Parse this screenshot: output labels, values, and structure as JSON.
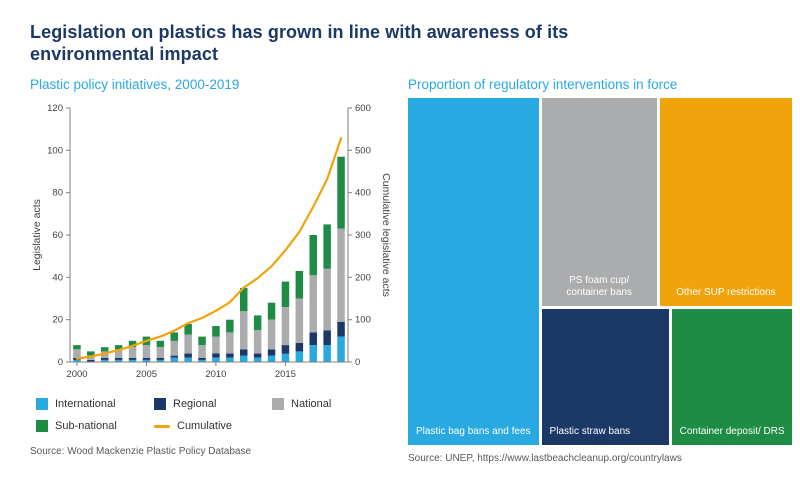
{
  "header": {
    "title_line1": "Legislation on plastics has grown in line with awareness of its",
    "title_line2": "environmental impact"
  },
  "colors": {
    "title_navy": "#1b3866",
    "accent_cyan": "#29a9e1",
    "international": "#29a9e1",
    "regional": "#1b3866",
    "national": "#aaacae",
    "sub_national": "#1e8c45",
    "cumulative": "#f0a30a",
    "axis_text": "#404040",
    "source_text": "#595959"
  },
  "left_chart": {
    "title": "Plastic policy initiatives, 2000-2019",
    "source": "Source: Wood Mackenzie Plastic Policy Database",
    "y_left_ticks": [
      0,
      20,
      40,
      60,
      80,
      100,
      120
    ],
    "y_right_ticks": [
      0,
      100,
      200,
      300,
      400,
      500,
      600
    ],
    "x_tick_labels": [
      "2000",
      "2005",
      "2010",
      "2015"
    ]
  },
  "legend": [
    {
      "label": "International",
      "color": "#29a9e1",
      "swatch": "square"
    },
    {
      "label": "Regional",
      "color": "#1b3866",
      "swatch": "square"
    },
    {
      "label": "National",
      "color": "#aaacae",
      "swatch": "square"
    },
    {
      "label": "Sub-national",
      "color": "#1e8c45",
      "swatch": "square"
    },
    {
      "label": "Cumulative",
      "color": "#f0a30a",
      "swatch": "line"
    }
  ],
  "treemap": {
    "title": "Proportion of regulatory interventions in force",
    "source": "Source: UNEP, https://www.lastbeachcleanup.org/countrylaws",
    "items": [
      {
        "label": "Plastic bag bans and fees",
        "color": "#29a9e1"
      },
      {
        "label": "PS foam cup/ container bans",
        "color": "#aaacae"
      },
      {
        "label": "Other SUP restrictions",
        "color": "#f0a30a"
      },
      {
        "label": "Plastic straw bans",
        "color": "#1b3866"
      },
      {
        "label": "Container deposit/ DRS",
        "color": "#1e8c45"
      }
    ]
  },
  "chart_data": [
    {
      "type": "bar",
      "subtype": "stacked-bar-with-cumulative-line",
      "title": "Plastic policy initiatives, 2000-2019",
      "x": [
        2000,
        2001,
        2002,
        2003,
        2004,
        2005,
        2006,
        2007,
        2008,
        2009,
        2010,
        2011,
        2012,
        2013,
        2014,
        2015,
        2016,
        2017,
        2018,
        2019
      ],
      "series": [
        {
          "name": "International",
          "color": "#29a9e1",
          "values": [
            1,
            0,
            1,
            1,
            1,
            1,
            1,
            2,
            2,
            1,
            2,
            2,
            3,
            2,
            3,
            4,
            5,
            8,
            8,
            12
          ]
        },
        {
          "name": "Regional",
          "color": "#1b3866",
          "values": [
            1,
            1,
            1,
            1,
            1,
            1,
            1,
            1,
            2,
            1,
            2,
            2,
            3,
            2,
            3,
            4,
            4,
            6,
            7,
            7
          ]
        },
        {
          "name": "National",
          "color": "#aaacae",
          "values": [
            4,
            2,
            3,
            4,
            5,
            6,
            5,
            7,
            9,
            6,
            8,
            10,
            18,
            11,
            14,
            18,
            21,
            27,
            29,
            44
          ]
        },
        {
          "name": "Sub-national",
          "color": "#1e8c45",
          "values": [
            2,
            2,
            2,
            2,
            3,
            4,
            3,
            4,
            5,
            4,
            5,
            6,
            11,
            7,
            8,
            12,
            13,
            19,
            21,
            34
          ]
        }
      ],
      "line": {
        "name": "Cumulative",
        "axis": "right",
        "color": "#f0a30a",
        "values": [
          8,
          13,
          20,
          28,
          38,
          50,
          60,
          74,
          92,
          104,
          121,
          141,
          176,
          198,
          226,
          264,
          307,
          367,
          432,
          529
        ]
      },
      "ylabel_left": "Legislative acts",
      "ylim_left": [
        0,
        120
      ],
      "ylabel_right": "Cumulative legislative acts",
      "ylim_right": [
        0,
        600
      ],
      "grid": false,
      "legend_position": "bottom"
    },
    {
      "type": "treemap",
      "title": "Proportion of regulatory interventions in force",
      "items": [
        {
          "label": "Plastic bag bans and fees"
        },
        {
          "label": "PS foam cup/ container bans"
        },
        {
          "label": "Other SUP restrictions"
        },
        {
          "label": "Plastic straw bans"
        },
        {
          "label": "Container deposit/ DRS"
        }
      ]
    }
  ]
}
